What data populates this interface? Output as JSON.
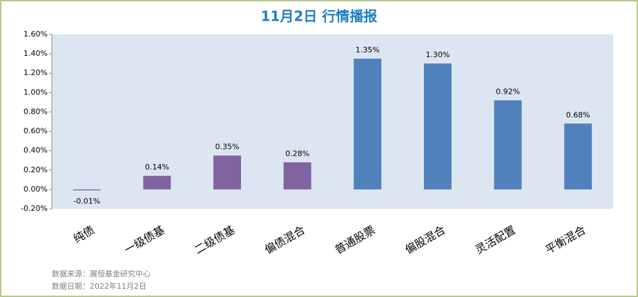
{
  "chart_data": {
    "type": "bar",
    "title": "11月2日 行情播报",
    "categories": [
      "纯债",
      "一级债基",
      "二级债基",
      "偏债混合",
      "普通股票",
      "偏股混合",
      "灵活配置",
      "平衡混合"
    ],
    "values": [
      -0.01,
      0.14,
      0.35,
      0.28,
      1.35,
      1.3,
      0.92,
      0.68
    ],
    "value_labels": [
      "-0.01%",
      "0.14%",
      "0.35%",
      "0.28%",
      "1.35%",
      "1.30%",
      "0.92%",
      "0.68%"
    ],
    "colors": [
      "#8064a2",
      "#8064a2",
      "#8064a2",
      "#8064a2",
      "#4f81bd",
      "#4f81bd",
      "#4f81bd",
      "#4f81bd"
    ],
    "ylim": [
      -0.2,
      1.6
    ],
    "yticks": [
      {
        "value": -0.2,
        "label": "-0.20%"
      },
      {
        "value": 0,
        "label": "0.00%"
      },
      {
        "value": 0.2,
        "label": "0.20%"
      },
      {
        "value": 0.4,
        "label": "0.40%"
      },
      {
        "value": 0.6,
        "label": "0.60%"
      },
      {
        "value": 0.8,
        "label": "0.80%"
      },
      {
        "value": 1.0,
        "label": "1.00%"
      },
      {
        "value": 1.2,
        "label": "1.20%"
      },
      {
        "value": 1.4,
        "label": "1.40%"
      },
      {
        "value": 1.6,
        "label": "1.60%"
      }
    ],
    "grid": false,
    "annotations": [
      "数据来源：展恒基金研究中心",
      "数据日期：2022年11月2日"
    ]
  }
}
